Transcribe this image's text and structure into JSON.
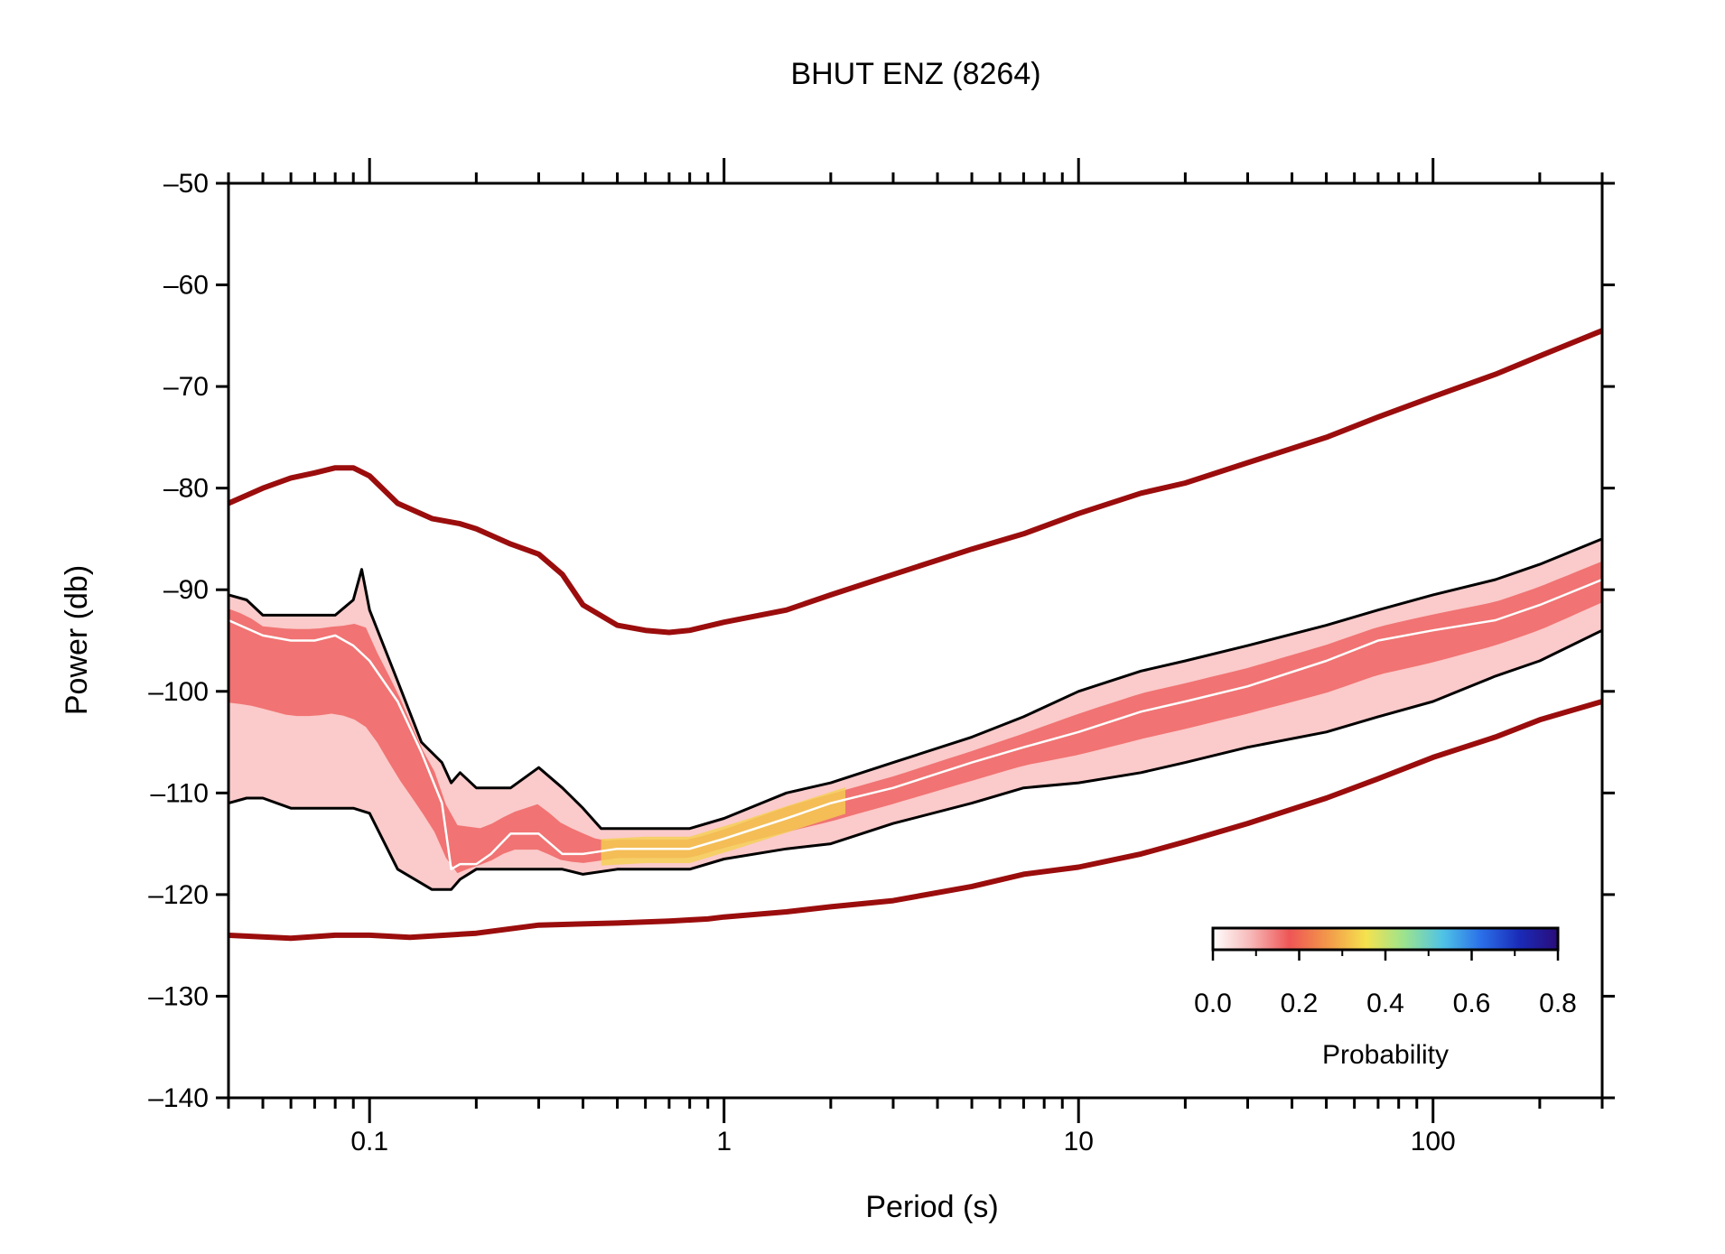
{
  "chart_data": {
    "type": "line",
    "title": "BHUT ENZ (8264)",
    "xlabel": "Period (s)",
    "ylabel": "Power (db)",
    "x_scale": "log",
    "xlim": [
      0.04,
      300
    ],
    "ylim": [
      -140,
      -50
    ],
    "x_ticks": [
      {
        "value": 0.1,
        "label": "0.1"
      },
      {
        "value": 1,
        "label": "1"
      },
      {
        "value": 10,
        "label": "10"
      },
      {
        "value": 100,
        "label": "100"
      }
    ],
    "y_ticks": [
      {
        "value": -50,
        "label": "–50"
      },
      {
        "value": -60,
        "label": "–60"
      },
      {
        "value": -70,
        "label": "–70"
      },
      {
        "value": -80,
        "label": "–80"
      },
      {
        "value": -90,
        "label": "–90"
      },
      {
        "value": -100,
        "label": "–100"
      },
      {
        "value": -110,
        "label": "–110"
      },
      {
        "value": -120,
        "label": "–120"
      },
      {
        "value": -130,
        "label": "–130"
      },
      {
        "value": -140,
        "label": "–140"
      }
    ],
    "colors": {
      "noise_model": "#9b0d0d",
      "percentile": "#000000",
      "mode": "#ffffff",
      "density": "#ee5555"
    },
    "series": [
      {
        "role": "new-high-noise-model",
        "x": [
          0.04,
          0.05,
          0.06,
          0.07,
          0.08,
          0.09,
          0.1,
          0.12,
          0.15,
          0.18,
          0.2,
          0.25,
          0.3,
          0.35,
          0.4,
          0.5,
          0.6,
          0.7,
          0.8,
          1,
          1.5,
          2,
          3,
          5,
          7,
          10,
          15,
          20,
          30,
          50,
          70,
          100,
          150,
          200,
          300
        ],
        "y": [
          -81.5,
          -80,
          -79,
          -78.5,
          -78,
          -78,
          -78.8,
          -81.5,
          -83,
          -83.5,
          -84,
          -85.5,
          -86.5,
          -88.5,
          -91.5,
          -93.5,
          -94,
          -94.2,
          -94,
          -93.2,
          -92,
          -90.5,
          -88.5,
          -86,
          -84.5,
          -82.5,
          -80.5,
          -79.5,
          -77.5,
          -75,
          -73,
          -71,
          -68.8,
          -67,
          -64.5
        ]
      },
      {
        "role": "new-low-noise-model",
        "x": [
          0.04,
          0.06,
          0.08,
          0.1,
          0.13,
          0.2,
          0.3,
          0.5,
          0.7,
          0.9,
          1,
          1.5,
          2,
          3,
          5,
          7,
          10,
          15,
          20,
          30,
          50,
          70,
          100,
          150,
          200,
          300
        ],
        "y": [
          -124,
          -124.3,
          -124,
          -124,
          -124.2,
          -123.8,
          -123,
          -122.8,
          -122.6,
          -122.4,
          -122.2,
          -121.7,
          -121.2,
          -120.6,
          -119.2,
          -118,
          -117.3,
          -116,
          -114.8,
          -113,
          -110.5,
          -108.6,
          -106.5,
          -104.5,
          -102.8,
          -101
        ]
      },
      {
        "role": "upper-percentile",
        "x": [
          0.04,
          0.045,
          0.05,
          0.055,
          0.06,
          0.07,
          0.08,
          0.09,
          0.095,
          0.1,
          0.12,
          0.14,
          0.16,
          0.17,
          0.18,
          0.2,
          0.25,
          0.3,
          0.35,
          0.4,
          0.45,
          0.5,
          0.6,
          0.8,
          1,
          1.5,
          2,
          3,
          5,
          7,
          10,
          15,
          20,
          30,
          50,
          70,
          100,
          150,
          200,
          300
        ],
        "y": [
          -90.5,
          -91,
          -92.5,
          -92.5,
          -92.5,
          -92.5,
          -92.5,
          -91,
          -88,
          -92,
          -99,
          -105,
          -107,
          -109,
          -108,
          -109.5,
          -109.5,
          -107.5,
          -109.5,
          -111.5,
          -113.5,
          -113.5,
          -113.5,
          -113.5,
          -112.5,
          -110,
          -109,
          -107,
          -104.5,
          -102.5,
          -100,
          -98,
          -97,
          -95.5,
          -93.5,
          -92,
          -90.5,
          -89,
          -87.5,
          -85
        ]
      },
      {
        "role": "lower-percentile",
        "x": [
          0.04,
          0.045,
          0.05,
          0.06,
          0.07,
          0.08,
          0.09,
          0.1,
          0.12,
          0.15,
          0.17,
          0.18,
          0.2,
          0.25,
          0.3,
          0.35,
          0.4,
          0.5,
          0.6,
          0.8,
          1,
          1.5,
          2,
          3,
          5,
          7,
          10,
          15,
          20,
          30,
          50,
          70,
          100,
          150,
          200,
          300
        ],
        "y": [
          -111,
          -110.5,
          -110.5,
          -111.5,
          -111.5,
          -111.5,
          -111.5,
          -112,
          -117.5,
          -119.5,
          -119.5,
          -118.5,
          -117.5,
          -117.5,
          -117.5,
          -117.5,
          -118,
          -117.5,
          -117.5,
          -117.5,
          -116.5,
          -115.5,
          -115,
          -113,
          -111,
          -109.5,
          -109,
          -108,
          -107,
          -105.5,
          -104,
          -102.5,
          -101,
          -98.5,
          -97,
          -94
        ]
      },
      {
        "role": "mode",
        "x": [
          0.04,
          0.05,
          0.06,
          0.07,
          0.08,
          0.09,
          0.1,
          0.12,
          0.14,
          0.16,
          0.17,
          0.18,
          0.2,
          0.22,
          0.25,
          0.3,
          0.35,
          0.4,
          0.5,
          0.6,
          0.8,
          1,
          1.5,
          2,
          3,
          5,
          7,
          10,
          15,
          20,
          30,
          50,
          70,
          100,
          150,
          200,
          300
        ],
        "y": [
          -93,
          -94.5,
          -95,
          -95,
          -94.5,
          -95.5,
          -97,
          -101,
          -106,
          -111,
          -117.5,
          -117,
          -117,
          -116,
          -114,
          -114,
          -116,
          -116,
          -115.5,
          -115.5,
          -115.5,
          -114.5,
          -112.5,
          -111,
          -109.5,
          -107,
          -105.5,
          -104,
          -102,
          -101,
          -99.5,
          -97,
          -95,
          -94,
          -93,
          -91.5,
          -89
        ]
      }
    ],
    "colorbar": {
      "label": "Probability",
      "range": [
        0,
        0.8
      ],
      "ticks": [
        "0.0",
        "0.2",
        "0.4",
        "0.6",
        "0.8"
      ],
      "colors": [
        "#ffffff",
        "#f7b7b7",
        "#ee5555",
        "#f2994a",
        "#f5e24f",
        "#9be38f",
        "#4fc3e6",
        "#2a6fe8",
        "#1a2bb8",
        "#2a0c7a"
      ],
      "position": "bottom-right"
    }
  }
}
